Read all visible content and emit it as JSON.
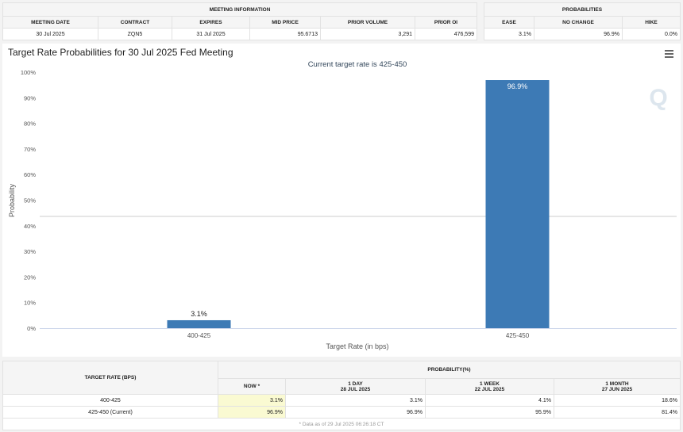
{
  "meeting_info": {
    "title": "MEETING INFORMATION",
    "headers": [
      "MEETING DATE",
      "CONTRACT",
      "EXPIRES",
      "MID PRICE",
      "PRIOR VOLUME",
      "PRIOR OI"
    ],
    "values": [
      "30 Jul 2025",
      "ZQN5",
      "31 Jul 2025",
      "95.6713",
      "3,291",
      "476,599"
    ]
  },
  "probabilities": {
    "title": "PROBABILITIES",
    "headers": [
      "EASE",
      "NO CHANGE",
      "HIKE"
    ],
    "values": [
      "3.1%",
      "96.9%",
      "0.0%"
    ]
  },
  "chart_data": {
    "type": "bar",
    "title": "Target Rate Probabilities for 30 Jul 2025 Fed Meeting",
    "subtitle": "Current target rate is 425-450",
    "xlabel": "Target Rate (in bps)",
    "ylabel": "Probability",
    "categories": [
      "400-425",
      "425-450"
    ],
    "values": [
      3.1,
      96.9
    ],
    "data_labels": [
      "3.1%",
      "96.9%"
    ],
    "ylim": [
      0,
      100
    ],
    "yticks": [
      "0%",
      "10%",
      "20%",
      "30%",
      "40%",
      "50%",
      "60%",
      "70%",
      "80%",
      "90%",
      "100%"
    ],
    "grid": false,
    "color": "#3d7ab5",
    "menu_icon": "hamburger-icon",
    "watermark": "Q"
  },
  "bottom_table": {
    "col1": "TARGET RATE (BPS)",
    "group": "PROBABILITY(%)",
    "headers": [
      {
        "l1": "NOW *",
        "l2": ""
      },
      {
        "l1": "1 DAY",
        "l2": "28 JUL 2025"
      },
      {
        "l1": "1 WEEK",
        "l2": "22 JUL 2025"
      },
      {
        "l1": "1 MONTH",
        "l2": "27 JUN 2025"
      }
    ],
    "rows": [
      {
        "rate": "400-425",
        "vals": [
          "3.1%",
          "3.1%",
          "4.1%",
          "18.6%"
        ]
      },
      {
        "rate": "425-450 (Current)",
        "vals": [
          "96.9%",
          "96.9%",
          "95.9%",
          "81.4%"
        ]
      }
    ],
    "footnote": "* Data as of 29 Jul 2025 06:26:18 CT"
  }
}
